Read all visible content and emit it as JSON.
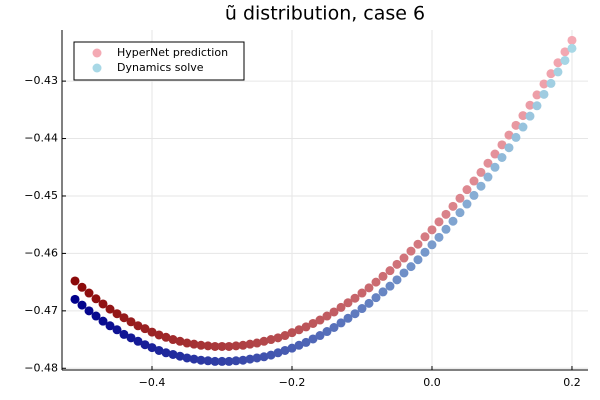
{
  "chart_data": {
    "type": "scatter",
    "title": "ũ distribution, case 6",
    "x": [
      -0.51,
      -0.5,
      -0.49,
      -0.48,
      -0.47,
      -0.46,
      -0.45,
      -0.44,
      -0.43,
      -0.42,
      -0.41,
      -0.4,
      -0.39,
      -0.38,
      -0.37,
      -0.36,
      -0.35,
      -0.34,
      -0.33,
      -0.32,
      -0.31,
      -0.3,
      -0.29,
      -0.28,
      -0.27,
      -0.26,
      -0.25,
      -0.24,
      -0.23,
      -0.22,
      -0.21,
      -0.2,
      -0.19,
      -0.18,
      -0.17,
      -0.16,
      -0.15,
      -0.14,
      -0.13,
      -0.12,
      -0.11,
      -0.1,
      -0.09,
      -0.08,
      -0.07,
      -0.06,
      -0.05,
      -0.04,
      -0.03,
      -0.02,
      -0.01,
      0,
      0.01,
      0.02,
      0.03,
      0.04,
      0.05,
      0.06,
      0.07,
      0.08,
      0.09,
      0.1,
      0.11,
      0.12,
      0.13,
      0.14,
      0.15,
      0.16,
      0.17,
      0.18,
      0.19,
      0.2
    ],
    "series": [
      {
        "name": "HyperNet prediction",
        "color": "#f4aab4",
        "color_start": "#8b0a0a",
        "values": [
          -0.4648,
          -0.4659,
          -0.4669,
          -0.4679,
          -0.4688,
          -0.4697,
          -0.4705,
          -0.4712,
          -0.4719,
          -0.4726,
          -0.4731,
          -0.4737,
          -0.4742,
          -0.4746,
          -0.475,
          -0.4753,
          -0.4756,
          -0.4758,
          -0.476,
          -0.4761,
          -0.4762,
          -0.4762,
          -0.4762,
          -0.4761,
          -0.476,
          -0.4758,
          -0.4756,
          -0.4753,
          -0.475,
          -0.4747,
          -0.4743,
          -0.4738,
          -0.4733,
          -0.4728,
          -0.4722,
          -0.4716,
          -0.4709,
          -0.4702,
          -0.4694,
          -0.4686,
          -0.4678,
          -0.4669,
          -0.466,
          -0.465,
          -0.464,
          -0.463,
          -0.4619,
          -0.4608,
          -0.4596,
          -0.4584,
          -0.4571,
          -0.4559,
          -0.4545,
          -0.4532,
          -0.4518,
          -0.4504,
          -0.4489,
          -0.4474,
          -0.4459,
          -0.4443,
          -0.4427,
          -0.4411,
          -0.4394,
          -0.4377,
          -0.436,
          -0.4342,
          -0.4324,
          -0.4305,
          -0.4287,
          -0.4268,
          -0.4249,
          -0.4229
        ]
      },
      {
        "name": "Dynamics solve",
        "color": "#a8d8e6",
        "color_start": "#00008b",
        "values": [
          -0.468,
          -0.469,
          -0.47,
          -0.4709,
          -0.4718,
          -0.4726,
          -0.4733,
          -0.4741,
          -0.4747,
          -0.4753,
          -0.4759,
          -0.4764,
          -0.4769,
          -0.4773,
          -0.4776,
          -0.4779,
          -0.4782,
          -0.4784,
          -0.4786,
          -0.4787,
          -0.4788,
          -0.4788,
          -0.4788,
          -0.4787,
          -0.4786,
          -0.4784,
          -0.4782,
          -0.478,
          -0.4777,
          -0.4773,
          -0.4769,
          -0.4765,
          -0.476,
          -0.4755,
          -0.4749,
          -0.4743,
          -0.4736,
          -0.4729,
          -0.4721,
          -0.4713,
          -0.4705,
          -0.4696,
          -0.4687,
          -0.4677,
          -0.4667,
          -0.4657,
          -0.4646,
          -0.4634,
          -0.4623,
          -0.4611,
          -0.4598,
          -0.4585,
          -0.4572,
          -0.4558,
          -0.4544,
          -0.4529,
          -0.4514,
          -0.4499,
          -0.4483,
          -0.4467,
          -0.445,
          -0.4433,
          -0.4416,
          -0.4398,
          -0.438,
          -0.4361,
          -0.4343,
          -0.4323,
          -0.4304,
          -0.4284,
          -0.4264,
          -0.4243
        ]
      }
    ],
    "xlim": [
      -0.5286,
      0.2229
    ],
    "ylim": [
      -0.4803,
      -0.4211
    ],
    "xticks": [
      {
        "value": -0.4,
        "label": "−0.4"
      },
      {
        "value": -0.2,
        "label": "−0.2"
      },
      {
        "value": 0,
        "label": "0.0"
      },
      0.2
    ],
    "yticks": [
      {
        "value": -0.48,
        "label": "−0.48"
      },
      {
        "value": -0.47,
        "label": "−0.47"
      },
      {
        "value": -0.46,
        "label": "−0.46"
      },
      {
        "value": -0.45,
        "label": "−0.45"
      },
      {
        "value": -0.44,
        "label": "−0.44"
      },
      {
        "value": -0.43,
        "label": "−0.43"
      }
    ],
    "grid": true,
    "legend": "top-left"
  }
}
